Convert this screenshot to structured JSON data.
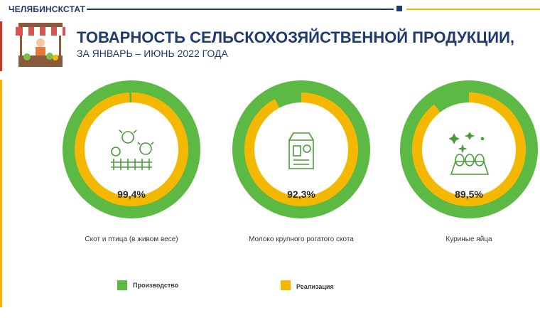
{
  "header": {
    "brand": "ЧЕЛЯБИНСКСТАТ",
    "title": "ТОВАРНОСТЬ СЕЛЬСКОХОЗЯЙСТВЕННОЙ ПРОДУКЦИИ,",
    "subtitle": "ЗА ЯНВАРЬ – ИЮНЬ 2022 ГОДА"
  },
  "colors": {
    "production": "#5bb944",
    "sales": "#f5b800",
    "brand": "#1f3a6e"
  },
  "chart_data": {
    "type": "pie",
    "unit": "%",
    "series_legend": [
      {
        "name": "Производство",
        "color": "#5bb944"
      },
      {
        "name": "Реализация",
        "color": "#f5b800"
      }
    ],
    "items": [
      {
        "category": "Скот и птица (в живом весе)",
        "value": 99.4,
        "label": "99,4%",
        "icon": "livestock-icon"
      },
      {
        "category": "Молоко крупного рогатого скота",
        "value": 92.3,
        "label": "92,3%",
        "icon": "milk-carton-icon"
      },
      {
        "category": "Куриные яйца",
        "value": 89.5,
        "label": "89,5%",
        "icon": "egg-tray-icon"
      }
    ]
  }
}
